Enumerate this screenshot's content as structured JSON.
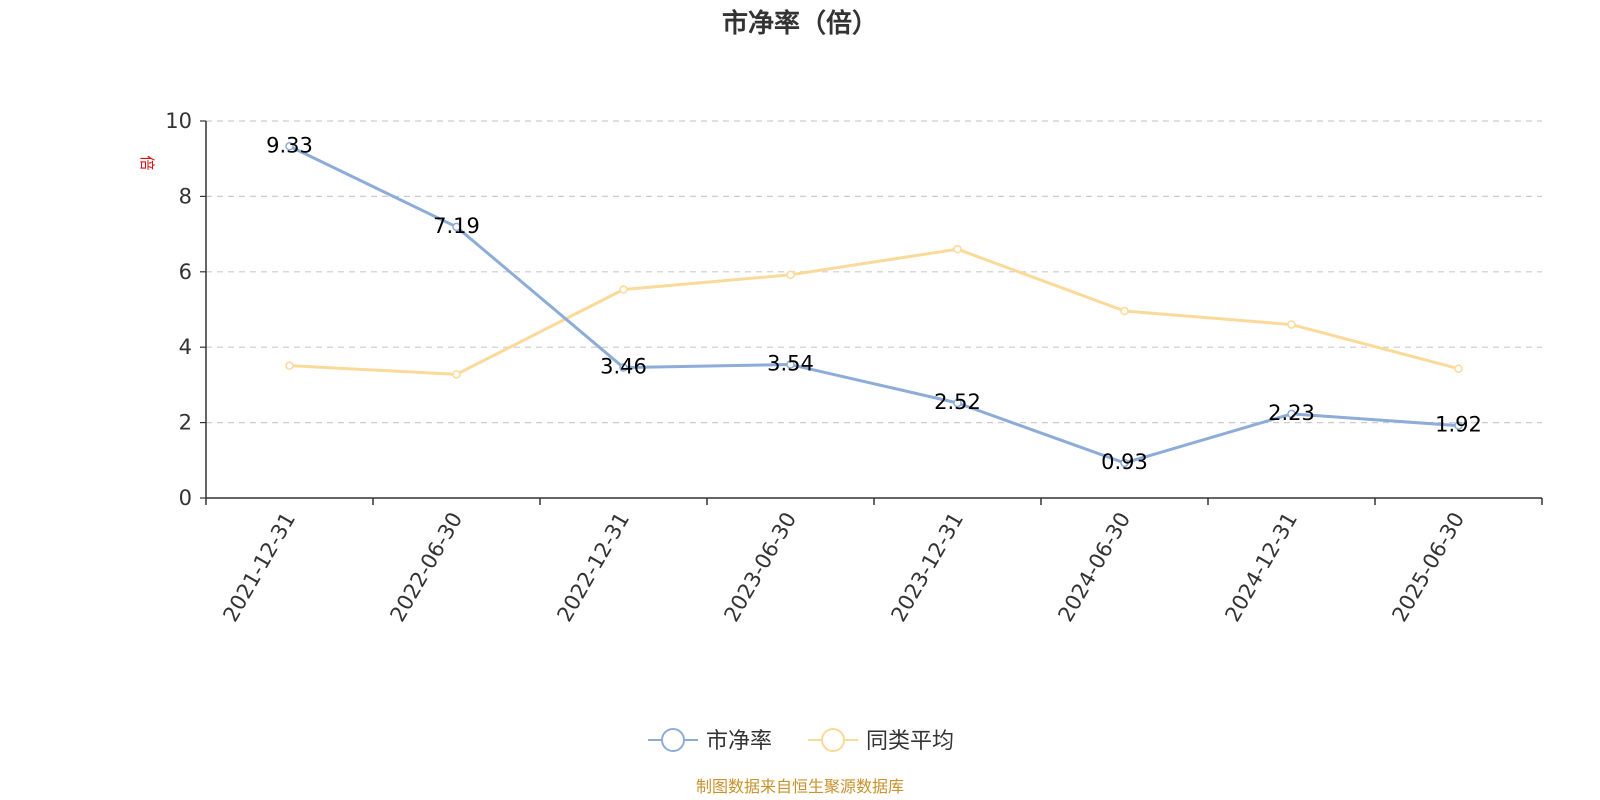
{
  "chart_data": {
    "type": "line",
    "title": "市净率（倍）",
    "ylabel": "倍",
    "categories": [
      "2021-12-31",
      "2022-06-30",
      "2022-12-31",
      "2023-06-30",
      "2023-12-31",
      "2024-06-30",
      "2024-12-31",
      "2025-06-30"
    ],
    "ylim": [
      0,
      10
    ],
    "yticks": [
      0,
      2,
      4,
      6,
      8,
      10
    ],
    "grid": true,
    "legend_position": "bottom-center",
    "series": [
      {
        "name": "市净率",
        "color": "#8eacd8",
        "values": [
          9.33,
          7.19,
          3.46,
          3.54,
          2.52,
          0.93,
          2.23,
          1.92
        ],
        "labels": [
          "9.33",
          "7.19",
          "3.46",
          "3.54",
          "2.52",
          "0.93",
          "2.23",
          "1.92"
        ]
      },
      {
        "name": "同类平均",
        "color": "#fbd999",
        "values": [
          3.51,
          3.28,
          5.53,
          5.92,
          6.6,
          4.96,
          4.6,
          3.43
        ]
      }
    ],
    "source": "制图数据来自恒生聚源数据库"
  }
}
